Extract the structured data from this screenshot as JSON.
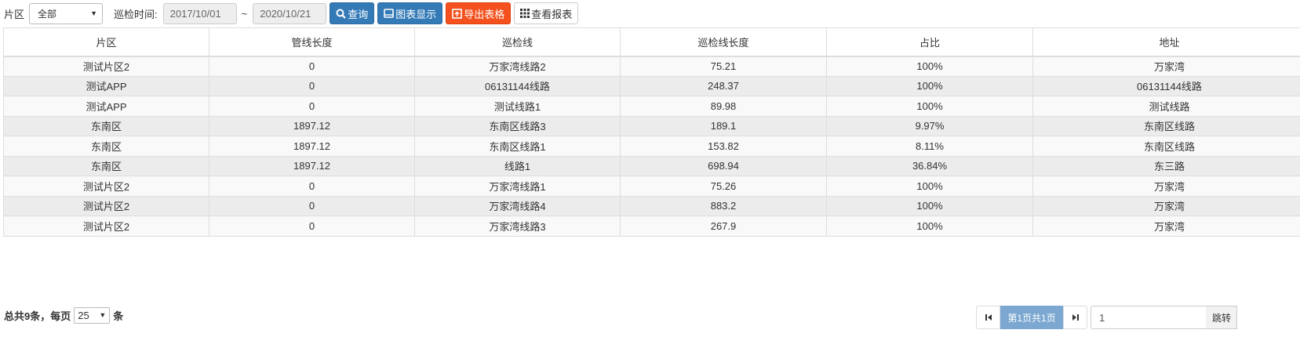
{
  "toolbar": {
    "area_label": "片区",
    "area_value": "全部",
    "time_label": "巡检时间:",
    "date_start": "2017/10/01",
    "date_sep": "~",
    "date_end": "2020/10/21",
    "query_label": "查询",
    "chart_label": "图表显示",
    "export_label": "导出表格",
    "report_label": "查看报表"
  },
  "table": {
    "columns": [
      "片区",
      "管线长度",
      "巡检线",
      "巡检线长度",
      "占比",
      "地址"
    ],
    "rows": [
      [
        "测试片区2",
        "0",
        "万家湾线路2",
        "75.21",
        "100%",
        "万家湾"
      ],
      [
        "测试APP",
        "0",
        "06131144线路",
        "248.37",
        "100%",
        "06131144线路"
      ],
      [
        "测试APP",
        "0",
        "测试线路1",
        "89.98",
        "100%",
        "测试线路"
      ],
      [
        "东南区",
        "1897.12",
        "东南区线路3",
        "189.1",
        "9.97%",
        "东南区线路"
      ],
      [
        "东南区",
        "1897.12",
        "东南区线路1",
        "153.82",
        "8.11%",
        "东南区线路"
      ],
      [
        "东南区",
        "1897.12",
        "线路1",
        "698.94",
        "36.84%",
        "东三路"
      ],
      [
        "测试片区2",
        "0",
        "万家湾线路1",
        "75.26",
        "100%",
        "万家湾"
      ],
      [
        "测试片区2",
        "0",
        "万家湾线路4",
        "883.2",
        "100%",
        "万家湾"
      ],
      [
        "测试片区2",
        "0",
        "万家湾线路3",
        "267.9",
        "100%",
        "万家湾"
      ]
    ]
  },
  "footer": {
    "total_text": "总共9条，每页",
    "page_size": "25",
    "unit": "条",
    "page_info": "第1页共1页",
    "jump_value": "1",
    "jump_label": "跳转"
  },
  "colors": {
    "primary": "#337ab7",
    "export": "#f4511e",
    "pager_active": "#7ba7d0"
  }
}
